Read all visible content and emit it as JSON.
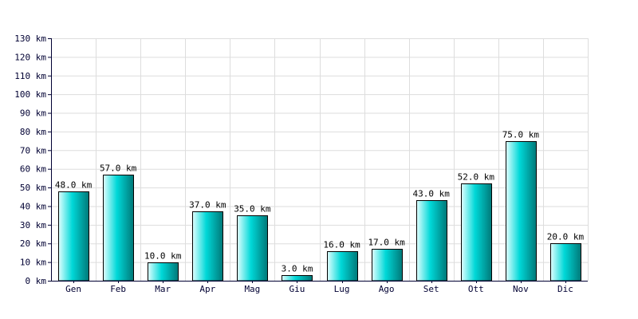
{
  "chart_data": {
    "type": "bar",
    "title": "",
    "xlabel": "",
    "ylabel": "",
    "unit": "km",
    "categories": [
      "Gen",
      "Feb",
      "Mar",
      "Apr",
      "Mag",
      "Giu",
      "Lug",
      "Ago",
      "Set",
      "Ott",
      "Nov",
      "Dic"
    ],
    "values": [
      48,
      57,
      10,
      37,
      35,
      3,
      16,
      17,
      43,
      52,
      75,
      20
    ],
    "data_labels": [
      "48.0 km",
      "57.0 km",
      "10.0 km",
      "37.0 km",
      "35.0 km",
      "3.0 km",
      "16.0 km",
      "17.0 km",
      "43.0 km",
      "52.0 km",
      "75.0 km",
      "20.0 km"
    ],
    "y_ticks": [
      0,
      10,
      20,
      30,
      40,
      50,
      60,
      70,
      80,
      90,
      100,
      110,
      120,
      130
    ],
    "y_tick_labels": [
      "0 km",
      "10 km",
      "20 km",
      "30 km",
      "40 km",
      "50 km",
      "60 km",
      "70 km",
      "80 km",
      "90 km",
      "100 km",
      "110 km",
      "120 km",
      "130 km"
    ],
    "ylim": [
      0,
      130
    ],
    "grid": true,
    "legend": "none",
    "colors": {
      "bar_light": "#e0ffff",
      "bar_mid": "#00d8d8",
      "bar_dark": "#007878",
      "bar_stroke": "#000000",
      "grid": "#dddddd",
      "axis": "#000033",
      "tick_text": "#000033"
    }
  }
}
